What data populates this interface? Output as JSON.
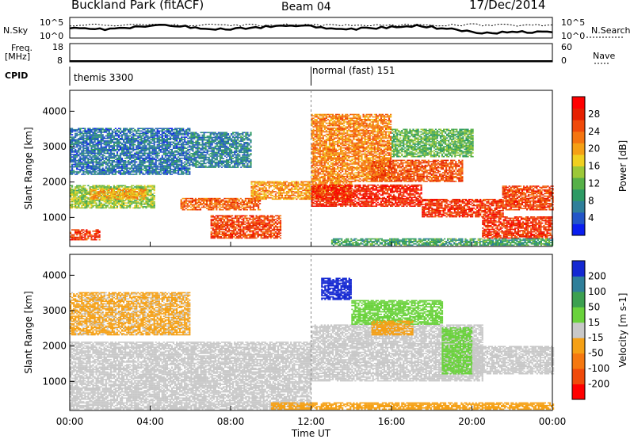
{
  "header": {
    "station": "Buckland Park (fitACF)",
    "beam": "Beam 04",
    "date": "17/Dec/2014"
  },
  "top_panels": {
    "nsky": {
      "left_label": "N.Sky",
      "left_ticks": [
        "10^5",
        "10^0"
      ],
      "right_label": "N.Search",
      "right_ticks": [
        "10^5",
        "10^0"
      ]
    },
    "freq": {
      "left_label_1": "Freq.",
      "left_label_2": "[MHz]",
      "left_ticks": [
        "18",
        "8"
      ],
      "right_label": "Nave",
      "right_ticks": [
        "60",
        "0"
      ]
    },
    "cpid": {
      "label": "CPID",
      "segments": [
        {
          "name": "themis 3300",
          "start_hour": 0
        },
        {
          "name": "normal (fast) 151",
          "start_hour": 12
        }
      ]
    }
  },
  "chart_data": [
    {
      "type": "heatmap",
      "name": "power",
      "ylabel": "Slant Range [km]",
      "xlabel": "Time UT",
      "x_ticks": [
        "00:00",
        "04:00",
        "08:00",
        "12:00",
        "16:00",
        "20:00",
        "00:00"
      ],
      "x_range_hours": [
        0,
        24
      ],
      "y_ticks": [
        1000,
        2000,
        3000,
        4000
      ],
      "y_range_km": [
        180,
        4590
      ],
      "colorbar": {
        "label": "Power [dB]",
        "ticks": [
          4,
          8,
          12,
          16,
          20,
          24,
          28
        ],
        "range": [
          0,
          32
        ],
        "colors": [
          "#0a1ef0",
          "#2255c8",
          "#2f7f9a",
          "#2d9a64",
          "#56b048",
          "#9cc838",
          "#f0d020",
          "#f5a015",
          "#f57510",
          "#f04a0a",
          "#e62000",
          "#ff0000"
        ]
      },
      "bands": [
        {
          "h0": 0.0,
          "h1": 1.5,
          "r0": 350,
          "r1": 650,
          "p": 27
        },
        {
          "h0": 0.0,
          "h1": 4.2,
          "r0": 1250,
          "r1": 1900,
          "p": 14
        },
        {
          "h0": 1.0,
          "h1": 3.8,
          "r0": 1500,
          "r1": 1800,
          "p": 20
        },
        {
          "h0": 0.0,
          "h1": 6.0,
          "r0": 2200,
          "r1": 3500,
          "p": 6
        },
        {
          "h0": 5.5,
          "h1": 9.5,
          "r0": 1200,
          "r1": 1550,
          "p": 24
        },
        {
          "h0": 7.0,
          "h1": 10.5,
          "r0": 400,
          "r1": 1050,
          "p": 26
        },
        {
          "h0": 6.0,
          "h1": 9.0,
          "r0": 2400,
          "r1": 3400,
          "p": 7
        },
        {
          "h0": 9.0,
          "h1": 14.0,
          "r0": 1500,
          "r1": 2000,
          "p": 21
        },
        {
          "h0": 12.0,
          "h1": 17.5,
          "r0": 1300,
          "r1": 1900,
          "p": 28
        },
        {
          "h0": 12.0,
          "h1": 16.0,
          "r0": 2000,
          "r1": 3900,
          "p": 22
        },
        {
          "h0": 15.0,
          "h1": 19.5,
          "r0": 2000,
          "r1": 2600,
          "p": 25
        },
        {
          "h0": 16.0,
          "h1": 20.0,
          "r0": 2700,
          "r1": 3500,
          "p": 12
        },
        {
          "h0": 17.5,
          "h1": 21.5,
          "r0": 1000,
          "r1": 1500,
          "p": 27
        },
        {
          "h0": 20.5,
          "h1": 24.0,
          "r0": 400,
          "r1": 1000,
          "p": 27
        },
        {
          "h0": 21.5,
          "h1": 24.0,
          "r0": 1200,
          "r1": 1900,
          "p": 26
        },
        {
          "h0": 13.0,
          "h1": 24.0,
          "r0": 200,
          "r1": 380,
          "p": 10
        }
      ]
    },
    {
      "type": "heatmap",
      "name": "velocity",
      "ylabel": "Slant Range [km]",
      "xlabel": "Time UT",
      "x_ticks": [
        "00:00",
        "04:00",
        "08:00",
        "12:00",
        "16:00",
        "20:00",
        "00:00"
      ],
      "x_range_hours": [
        0,
        24
      ],
      "y_ticks": [
        1000,
        2000,
        3000,
        4000
      ],
      "y_range_km": [
        180,
        4590
      ],
      "colorbar": {
        "label": "Velocity [m s-1]",
        "ticks": [
          200,
          100,
          50,
          15,
          -15,
          -50,
          -100,
          -200
        ],
        "range": [
          -250,
          250
        ],
        "colors": [
          "#1428d2",
          "#2f7f9a",
          "#3ca050",
          "#6ad23c",
          "#c8c8c8",
          "#f5a015",
          "#f57810",
          "#f04a0a",
          "#ff0000"
        ]
      },
      "bands": [
        {
          "h0": 0.0,
          "h1": 12.0,
          "r0": 200,
          "r1": 2100,
          "v": 0
        },
        {
          "h0": 0.0,
          "h1": 6.0,
          "r0": 2300,
          "r1": 3500,
          "v": -30
        },
        {
          "h0": 12.0,
          "h1": 20.5,
          "r0": 1000,
          "r1": 2600,
          "v": 0
        },
        {
          "h0": 12.5,
          "h1": 14.0,
          "r0": 3300,
          "r1": 3900,
          "v": 220
        },
        {
          "h0": 14.0,
          "h1": 18.5,
          "r0": 2600,
          "r1": 3300,
          "v": 40
        },
        {
          "h0": 18.5,
          "h1": 20.0,
          "r0": 1200,
          "r1": 2500,
          "v": 35
        },
        {
          "h0": 15.0,
          "h1": 17.0,
          "r0": 2300,
          "r1": 2700,
          "v": -60
        },
        {
          "h0": 10.0,
          "h1": 24.0,
          "r0": 200,
          "r1": 400,
          "v": -70
        },
        {
          "h0": 20.0,
          "h1": 24.0,
          "r0": 1200,
          "r1": 2000,
          "v": 0
        }
      ]
    }
  ]
}
